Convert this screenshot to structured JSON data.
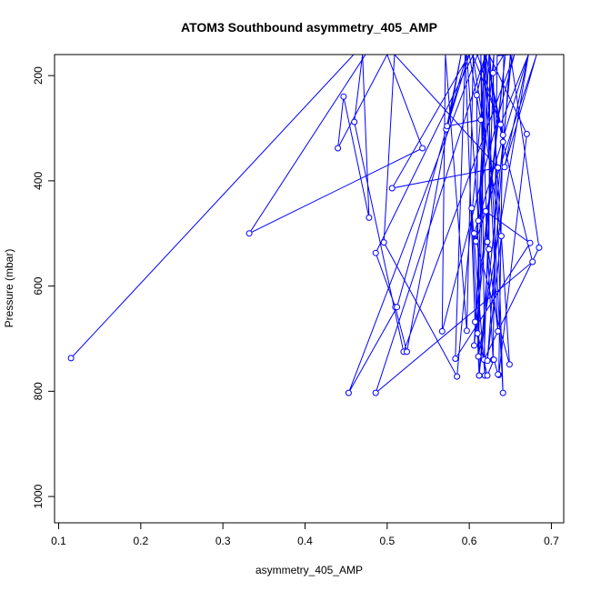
{
  "chart_data": {
    "type": "line",
    "title": "ATOM3 Southbound asymmetry_405_AMP",
    "xlabel": "asymmetry_405_AMP",
    "ylabel": "Pressure (mbar)",
    "xlim": [
      0.095,
      0.715
    ],
    "ylim": [
      1050,
      160
    ],
    "y_inverted": true,
    "xticks": [
      0.1,
      0.2,
      0.3,
      0.4,
      0.5,
      0.6,
      0.7
    ],
    "xtick_labels": [
      "0.1",
      "0.2",
      "0.3",
      "0.4",
      "0.5",
      "0.6",
      "0.7"
    ],
    "yticks": [
      200,
      400,
      600,
      800,
      1000
    ],
    "ytick_labels": [
      "200",
      "400",
      "600",
      "800",
      "1000"
    ],
    "grid": false,
    "legend": "none",
    "series": [
      {
        "color": "#0000ff",
        "marker": "open-circle",
        "points": [
          [
            0.115,
            737
          ],
          [
            0.507,
            80
          ],
          [
            0.332,
            500
          ],
          [
            0.543,
            338
          ],
          [
            0.5,
            160
          ],
          [
            0.44,
            338
          ],
          [
            0.447,
            240
          ],
          [
            0.478,
            470
          ],
          [
            0.47,
            160
          ],
          [
            0.46,
            288
          ],
          [
            0.52,
            725
          ],
          [
            0.655,
            160
          ],
          [
            0.567,
            686
          ],
          [
            0.571,
            160
          ],
          [
            0.597,
            685
          ],
          [
            0.605,
            160
          ],
          [
            0.486,
            537
          ],
          [
            0.51,
            640
          ],
          [
            0.524,
            725
          ],
          [
            0.59,
            160
          ],
          [
            0.572,
            302
          ],
          [
            0.6,
            160
          ],
          [
            0.573,
            296
          ],
          [
            0.614,
            284
          ],
          [
            0.6,
            160
          ],
          [
            0.506,
            414
          ],
          [
            0.635,
            375
          ],
          [
            0.509,
            160
          ],
          [
            0.496,
            517
          ],
          [
            0.585,
            772
          ],
          [
            0.621,
            160
          ],
          [
            0.611,
            476
          ],
          [
            0.597,
            160
          ],
          [
            0.512,
            640
          ],
          [
            0.453,
            803
          ],
          [
            0.61,
            160
          ],
          [
            0.641,
            313
          ],
          [
            0.62,
            160
          ],
          [
            0.611,
            734
          ],
          [
            0.672,
            160
          ],
          [
            0.643,
            374
          ],
          [
            0.682,
            160
          ],
          [
            0.608,
            515
          ],
          [
            0.63,
            160
          ],
          [
            0.618,
            740
          ],
          [
            0.685,
            527
          ],
          [
            0.65,
            160
          ],
          [
            0.622,
            742
          ],
          [
            0.639,
            505
          ],
          [
            0.604,
            160
          ],
          [
            0.638,
            293
          ],
          [
            0.672,
            160
          ],
          [
            0.606,
            500
          ],
          [
            0.649,
            749
          ],
          [
            0.625,
            160
          ],
          [
            0.624,
            530
          ],
          [
            0.612,
            770
          ],
          [
            0.652,
            160
          ],
          [
            0.634,
            162
          ],
          [
            0.629,
            740
          ],
          [
            0.62,
            458
          ],
          [
            0.674,
            518
          ],
          [
            0.583,
            738
          ],
          [
            0.595,
            160
          ],
          [
            0.607,
            668
          ],
          [
            0.644,
            160
          ],
          [
            0.606,
            713
          ],
          [
            0.624,
            160
          ],
          [
            0.67,
            311
          ],
          [
            0.636,
            769
          ],
          [
            0.642,
            160
          ],
          [
            0.629,
            195
          ],
          [
            0.641,
            803
          ],
          [
            0.62,
            160
          ],
          [
            0.641,
            326
          ],
          [
            0.677,
            554
          ],
          [
            0.486,
            803
          ],
          [
            0.62,
            160
          ],
          [
            0.609,
            237
          ],
          [
            0.612,
            770
          ],
          [
            0.603,
            452
          ],
          [
            0.619,
            770
          ],
          [
            0.614,
            160
          ],
          [
            0.622,
            516
          ],
          [
            0.635,
            686
          ],
          [
            0.618,
            160
          ],
          [
            0.61,
            690
          ],
          [
            0.622,
            770
          ],
          [
            0.63,
            740
          ],
          [
            0.635,
            768
          ]
        ]
      }
    ]
  }
}
